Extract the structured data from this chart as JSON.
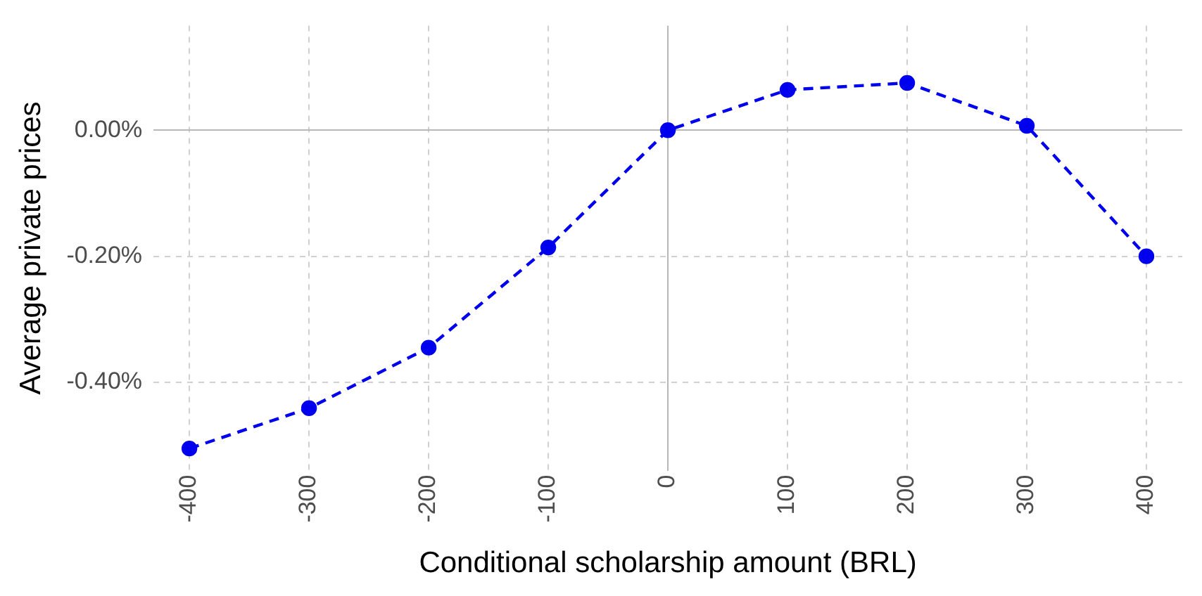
{
  "chart_data": {
    "type": "line",
    "xlabel": "Conditional scholarship amount (BRL)",
    "ylabel": "Average private prices",
    "x": [
      -400,
      -300,
      -200,
      -100,
      0,
      100,
      200,
      300,
      400
    ],
    "series": [
      {
        "color": "#0000ee",
        "values": [
          -0.505,
          -0.441,
          -0.345,
          -0.186,
          0,
          0.064,
          0.075,
          0.007,
          -0.2
        ]
      }
    ],
    "xlim": [
      -430,
      430
    ],
    "xticks": [
      -400,
      -300,
      -200,
      -100,
      0,
      100,
      200,
      300,
      400
    ],
    "ylim": [
      -0.54,
      0.166
    ],
    "yticks": [
      {
        "value": -0.4,
        "label": "-0.40%"
      },
      {
        "value": -0.2,
        "label": "-0.20%"
      },
      {
        "value": 0,
        "label": "0.00%"
      }
    ],
    "grid": true,
    "marker": "circle",
    "line_style": "dashed",
    "legend": false
  }
}
